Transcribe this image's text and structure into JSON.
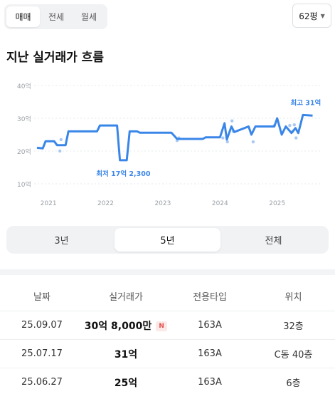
{
  "deal_tabs": [
    {
      "label": "매매",
      "active": true
    },
    {
      "label": "전세",
      "active": false
    },
    {
      "label": "월세",
      "active": false
    }
  ],
  "size_select": {
    "value": "62평"
  },
  "title": "지난 실거래가 흐름",
  "chart_data": {
    "type": "line",
    "x_ticks": [
      "2021",
      "2022",
      "2023",
      "2024",
      "2025"
    ],
    "y_ticks": [
      "10억",
      "20억",
      "30억",
      "40억"
    ],
    "ylim": [
      10,
      40
    ],
    "xlim": [
      2020.75,
      2025.75
    ],
    "grid": true,
    "line_color": "#3a86e8",
    "dot_color": "#a9c9f3",
    "series": [
      {
        "values": [
          [
            2020.8,
            21
          ],
          [
            2020.9,
            20.8
          ],
          [
            2020.95,
            23
          ],
          [
            2021.1,
            23
          ],
          [
            2021.15,
            21.8
          ],
          [
            2021.3,
            21.8
          ],
          [
            2021.35,
            26
          ],
          [
            2021.85,
            26
          ],
          [
            2021.9,
            27.8
          ],
          [
            2022.2,
            27.8
          ],
          [
            2022.25,
            17.2
          ],
          [
            2022.37,
            17.2
          ],
          [
            2022.42,
            26
          ],
          [
            2022.55,
            26
          ],
          [
            2022.6,
            25.6
          ],
          [
            2023.15,
            25.6
          ],
          [
            2023.25,
            23.7
          ],
          [
            2023.7,
            23.7
          ],
          [
            2023.75,
            24.2
          ],
          [
            2024.0,
            24.2
          ],
          [
            2024.08,
            28.5
          ],
          [
            2024.12,
            23.5
          ],
          [
            2024.2,
            27.5
          ],
          [
            2024.25,
            25.8
          ],
          [
            2024.5,
            27.5
          ],
          [
            2024.55,
            25
          ],
          [
            2024.62,
            27.5
          ],
          [
            2024.95,
            27.5
          ],
          [
            2025.0,
            30
          ],
          [
            2025.08,
            25
          ],
          [
            2025.15,
            27.5
          ],
          [
            2025.25,
            25.5
          ],
          [
            2025.32,
            27
          ],
          [
            2025.37,
            25.5
          ],
          [
            2025.45,
            31
          ],
          [
            2025.62,
            30.8
          ]
        ]
      }
    ],
    "dots": [
      [
        2021.2,
        20
      ],
      [
        2021.22,
        23.5
      ],
      [
        2023.25,
        23.2
      ],
      [
        2023.28,
        24
      ],
      [
        2024.05,
        24
      ],
      [
        2024.13,
        22.8
      ],
      [
        2024.21,
        29.2
      ],
      [
        2024.23,
        26
      ],
      [
        2024.58,
        22.8
      ],
      [
        2024.95,
        27.8
      ],
      [
        2025.22,
        27.8
      ],
      [
        2025.27,
        26
      ],
      [
        2025.3,
        28
      ],
      [
        2025.33,
        24
      ]
    ],
    "annotations": [
      {
        "label": "최저 17억 2,300",
        "x": 2022.31,
        "y": 17.2,
        "pos": "below"
      },
      {
        "label": "최고 31억",
        "x": 2025.5,
        "y": 31,
        "pos": "above"
      }
    ]
  },
  "periods": [
    {
      "label": "3년",
      "active": false
    },
    {
      "label": "5년",
      "active": true
    },
    {
      "label": "전체",
      "active": false
    }
  ],
  "table": {
    "headers": [
      "날짜",
      "실거래가",
      "전용타입",
      "위치"
    ],
    "rows": [
      {
        "date": "25.09.07",
        "price": "30억 8,000만",
        "badge": "N",
        "type": "163A",
        "floor": "32층"
      },
      {
        "date": "25.07.17",
        "price": "31억",
        "badge": "",
        "type": "163A",
        "floor": "C동 40층"
      },
      {
        "date": "25.06.27",
        "price": "25억",
        "badge": "",
        "type": "163A",
        "floor": "6층"
      }
    ]
  }
}
